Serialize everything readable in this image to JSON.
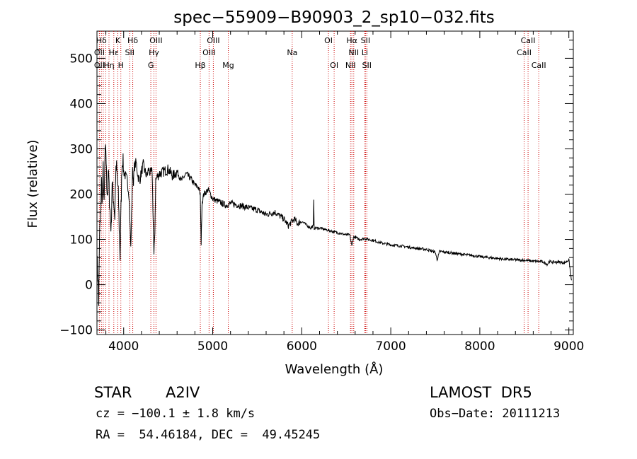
{
  "chart_data": {
    "type": "line",
    "title": "spec−55909−B90903_2_sp10−032.fits",
    "xlabel": "Wavelength (Å)",
    "ylabel": "Flux (relative)",
    "xlim": [
      3700,
      9050
    ],
    "ylim": [
      -110,
      560
    ],
    "xticks": [
      4000,
      5000,
      6000,
      7000,
      8000,
      9000
    ],
    "xtick_labels": [
      "4000",
      "5000",
      "6000",
      "7000",
      "8000",
      "9000"
    ],
    "yticks": [
      -100,
      0,
      100,
      200,
      300,
      400,
      500
    ],
    "ytick_labels": [
      "−100",
      "0",
      "100",
      "200",
      "300",
      "400",
      "500"
    ],
    "grid": false,
    "series": [
      {
        "color": "#000000",
        "x": [
          3700,
          3710,
          3720,
          3730,
          3740,
          3750,
          3760,
          3770,
          3780,
          3790,
          3800,
          3810,
          3820,
          3830,
          3840,
          3850,
          3860,
          3870,
          3880,
          3890,
          3900,
          3910,
          3920,
          3930,
          3940,
          3950,
          3960,
          3970,
          3980,
          3990,
          4000,
          4020,
          4040,
          4060,
          4080,
          4100,
          4110,
          4120,
          4140,
          4160,
          4180,
          4200,
          4220,
          4240,
          4260,
          4280,
          4300,
          4320,
          4340,
          4350,
          4360,
          4380,
          4400,
          4450,
          4500,
          4550,
          4600,
          4650,
          4700,
          4750,
          4800,
          4840,
          4860,
          4870,
          4880,
          4900,
          4950,
          5000,
          5050,
          5100,
          5150,
          5200,
          5300,
          5400,
          5500,
          5600,
          5700,
          5800,
          5850,
          5890,
          5920,
          5950,
          6000,
          6100,
          6130,
          6135,
          6140,
          6200,
          6300,
          6400,
          6500,
          6540,
          6563,
          6580,
          6600,
          6650,
          6700,
          6800,
          6900,
          7000,
          7100,
          7200,
          7300,
          7400,
          7500,
          7520,
          7550,
          7600,
          7700,
          7800,
          7900,
          8000,
          8100,
          8200,
          8300,
          8400,
          8500,
          8600,
          8700,
          8760,
          8780,
          8800,
          8900,
          8950,
          9000,
          9030
        ],
        "y": [
          60,
          20,
          -40,
          120,
          150,
          230,
          180,
          260,
          170,
          280,
          300,
          220,
          200,
          250,
          190,
          150,
          120,
          230,
          200,
          180,
          150,
          240,
          260,
          230,
          200,
          130,
          60,
          170,
          260,
          280,
          250,
          240,
          230,
          200,
          80,
          250,
          230,
          260,
          270,
          240,
          230,
          250,
          265,
          250,
          240,
          255,
          245,
          250,
          60,
          120,
          230,
          240,
          245,
          250,
          255,
          240,
          250,
          230,
          245,
          235,
          220,
          215,
          200,
          90,
          180,
          200,
          210,
          190,
          185,
          180,
          175,
          180,
          175,
          170,
          165,
          155,
          160,
          145,
          130,
          140,
          145,
          135,
          140,
          125,
          130,
          185,
          125,
          125,
          120,
          115,
          110,
          110,
          85,
          105,
          105,
          100,
          102,
          98,
          92,
          88,
          86,
          83,
          80,
          78,
          72,
          55,
          74,
          72,
          70,
          67,
          65,
          62,
          60,
          58,
          56,
          55,
          54,
          52,
          51,
          45,
          52,
          50,
          50,
          48,
          55,
          10
        ]
      }
    ],
    "annotations": [
      {
        "label": "Hδ",
        "x": 3750,
        "row": 0
      },
      {
        "label": "K",
        "x": 3934,
        "row": 0
      },
      {
        "label": "Hδ",
        "x": 4102,
        "row": 0
      },
      {
        "label": "OIII",
        "x": 4363,
        "row": 0
      },
      {
        "label": "OIII",
        "x": 5007,
        "row": 0
      },
      {
        "label": "OI",
        "x": 6300,
        "row": 0
      },
      {
        "label": "Hα",
        "x": 6563,
        "row": 0
      },
      {
        "label": "SII",
        "x": 6716,
        "row": 0
      },
      {
        "label": "CaII",
        "x": 8542,
        "row": 0
      },
      {
        "label": "OII",
        "x": 3727,
        "row": 1
      },
      {
        "label": "Hε",
        "x": 3889,
        "row": 1
      },
      {
        "label": "SII",
        "x": 4068,
        "row": 1
      },
      {
        "label": "Hγ",
        "x": 4340,
        "row": 1
      },
      {
        "label": "OIII",
        "x": 4959,
        "row": 1
      },
      {
        "label": "Na",
        "x": 5893,
        "row": 1
      },
      {
        "label": "NII",
        "x": 6584,
        "row": 1
      },
      {
        "label": "Li",
        "x": 6708,
        "row": 1
      },
      {
        "label": "CaII",
        "x": 8498,
        "row": 1
      },
      {
        "label": "OII",
        "x": 3727,
        "row": 2
      },
      {
        "label": "Hη",
        "x": 3835,
        "row": 2
      },
      {
        "label": "H",
        "x": 3968,
        "row": 2
      },
      {
        "label": "G",
        "x": 4305,
        "row": 2
      },
      {
        "label": "Hβ",
        "x": 4861,
        "row": 2
      },
      {
        "label": "Mg",
        "x": 5175,
        "row": 2
      },
      {
        "label": "OI",
        "x": 6364,
        "row": 2
      },
      {
        "label": "NII",
        "x": 6548,
        "row": 2
      },
      {
        "label": "SII",
        "x": 6731,
        "row": 2
      },
      {
        "label": "CaII",
        "x": 8662,
        "row": 2
      }
    ],
    "line_markers": [
      3727,
      3750,
      3771,
      3798,
      3835,
      3889,
      3934,
      3968,
      4068,
      4102,
      4305,
      4340,
      4363,
      4861,
      4959,
      5007,
      5175,
      5893,
      6300,
      6364,
      6548,
      6563,
      6584,
      6708,
      6716,
      6731,
      8498,
      8542,
      8662
    ]
  },
  "info": {
    "object_class": "STAR",
    "subclass": "A2IV",
    "survey": "LAMOST  DR5",
    "redshift": "cz = −100.1 ± 1.8 km/s",
    "obs_date": "Obs−Date: 20111213",
    "coords": "RA =  54.46184, DEC =  49.45245"
  }
}
